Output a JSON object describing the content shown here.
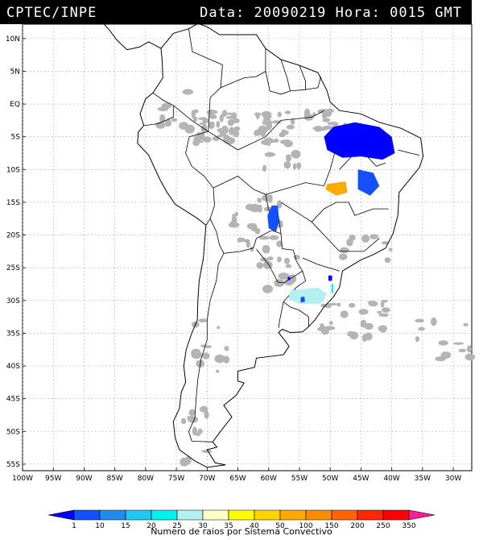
{
  "header": {
    "source": "CPTEC/INPE",
    "data_label": "Data:",
    "date": "20090219",
    "hora_label": "Hora:",
    "time": "0015 GMT"
  },
  "map": {
    "lat_labels": [
      "10N",
      "5N",
      "EQ",
      "5S",
      "10S",
      "15S",
      "20S",
      "25S",
      "30S",
      "35S",
      "40S",
      "45S",
      "50S",
      "55S"
    ],
    "lon_labels": [
      "100W",
      "95W",
      "90W",
      "85W",
      "80W",
      "75W",
      "70W",
      "65W",
      "60W",
      "55W",
      "50W",
      "45W",
      "40W",
      "35W",
      "30W"
    ],
    "lat_values": [
      10,
      5,
      0,
      -5,
      -10,
      -15,
      -20,
      -25,
      -30,
      -35,
      -40,
      -45,
      -50,
      -55
    ],
    "lon_values": [
      -100,
      -95,
      -90,
      -85,
      -80,
      -75,
      -70,
      -65,
      -60,
      -55,
      -50,
      -45,
      -40,
      -35,
      -30
    ],
    "cloud_color": "#b4b4b4"
  },
  "legend": {
    "labels": [
      "1",
      "10",
      "15",
      "20",
      "25",
      "30",
      "35",
      "40",
      "50",
      "100",
      "150",
      "200",
      "250",
      "350"
    ],
    "colors": [
      "#0000ff",
      "#1450ff",
      "#1e8cf0",
      "#1ec8f0",
      "#00f0f0",
      "#b4f0f0",
      "#ffffc8",
      "#ffff00",
      "#ffd200",
      "#ffaa00",
      "#ff8c00",
      "#ff6400",
      "#ff2800",
      "#ff0000",
      "#ff1e96"
    ],
    "caption": "Numero de raios por Sistema Convectivo"
  },
  "systems": [
    {
      "color_index": 0,
      "points": [
        [
          -49.5,
          -3.5
        ],
        [
          -46,
          -2.8
        ],
        [
          -42,
          -3.5
        ],
        [
          -40,
          -5
        ],
        [
          -39.5,
          -7.5
        ],
        [
          -41.5,
          -8.5
        ],
        [
          -45,
          -8
        ],
        [
          -48,
          -8.2
        ],
        [
          -50.5,
          -7
        ],
        [
          -51,
          -5
        ]
      ]
    },
    {
      "color_index": 1,
      "points": [
        [
          -45.5,
          -10
        ],
        [
          -43,
          -10.5
        ],
        [
          -42,
          -12.5
        ],
        [
          -43.5,
          -14
        ],
        [
          -45.5,
          -13
        ]
      ]
    },
    {
      "color_index": 1,
      "points": [
        [
          -59.5,
          -15.5
        ],
        [
          -58.5,
          -15.5
        ],
        [
          -58.3,
          -18
        ],
        [
          -58.8,
          -19.5
        ],
        [
          -60,
          -19
        ],
        [
          -60.2,
          -17
        ]
      ]
    },
    {
      "color_index": 9,
      "points": [
        [
          -50.5,
          -12.2
        ],
        [
          -47.5,
          -11.8
        ],
        [
          -47.2,
          -13.5
        ],
        [
          -49,
          -14
        ],
        [
          -50.8,
          -13
        ]
      ]
    },
    {
      "color_index": 5,
      "points": [
        [
          -56.5,
          -28.5
        ],
        [
          -52,
          -28
        ],
        [
          -50.5,
          -29
        ],
        [
          -51.5,
          -30.5
        ],
        [
          -55,
          -30.5
        ],
        [
          -56.8,
          -29.8
        ]
      ]
    },
    {
      "color_index": 1,
      "points": [
        [
          -54.8,
          -29.5
        ],
        [
          -54.2,
          -29.4
        ],
        [
          -54.1,
          -30.2
        ],
        [
          -54.8,
          -30.3
        ]
      ]
    },
    {
      "color_index": 0,
      "points": [
        [
          -50.3,
          -26.2
        ],
        [
          -49.7,
          -26.2
        ],
        [
          -49.7,
          -27
        ],
        [
          -50.3,
          -27
        ]
      ]
    },
    {
      "color_index": 0,
      "points": [
        [
          -56.9,
          -26.4
        ],
        [
          -56.5,
          -26.4
        ],
        [
          -56.5,
          -26.9
        ],
        [
          -56.9,
          -26.9
        ]
      ]
    },
    {
      "color_index": 4,
      "points": [
        [
          -49.8,
          -27.5
        ],
        [
          -49.5,
          -27.5
        ],
        [
          -49.5,
          -28.8
        ],
        [
          -49.8,
          -28.8
        ]
      ]
    }
  ]
}
